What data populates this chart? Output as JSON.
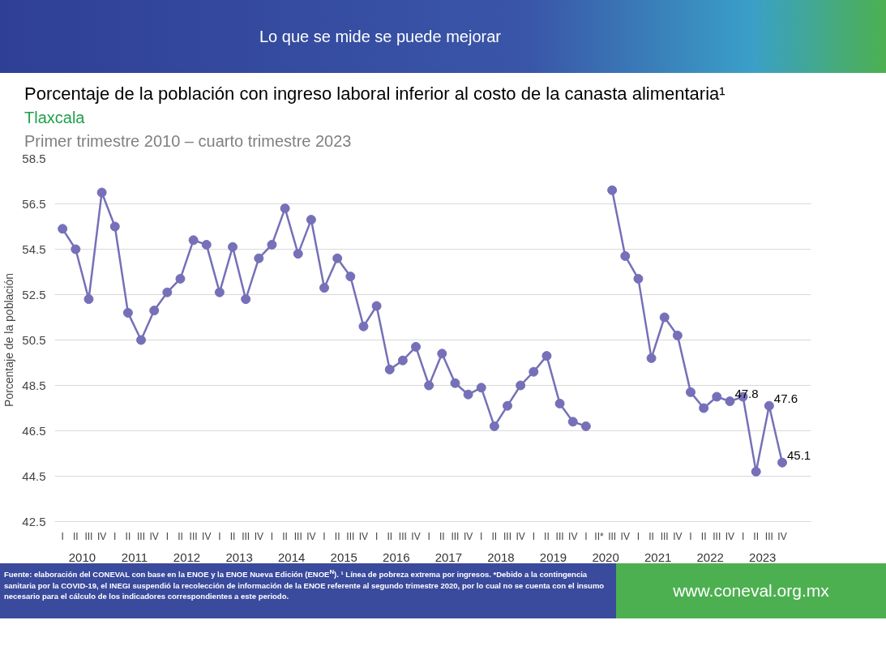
{
  "chart_data": {
    "type": "line",
    "title": "Porcentaje de la población con ingreso laboral inferior al costo de la canasta alimentaria¹",
    "subtitle": [
      "Tlaxcala",
      "Primer trimestre 2010 – cuarto trimestre 2023"
    ],
    "ylabel": "Porcentaje de la población",
    "categories": [
      "I",
      "II",
      "III",
      "IV",
      "I",
      "II",
      "III",
      "IV",
      "I",
      "II",
      "III",
      "IV",
      "I",
      "II",
      "III",
      "IV",
      "I",
      "II",
      "III",
      "IV",
      "I",
      "II",
      "III",
      "IV",
      "I",
      "II",
      "III",
      "IV",
      "I",
      "II",
      "III",
      "IV",
      "I",
      "II",
      "III",
      "IV",
      "I",
      "II",
      "III",
      "IV",
      "I",
      "II*",
      "III",
      "IV",
      "I",
      "II",
      "III",
      "IV",
      "I",
      "II",
      "III",
      "IV",
      "I",
      "II",
      "III",
      "IV"
    ],
    "series": [
      {
        "color": "#7570b8",
        "values": [
          55.4,
          54.5,
          52.3,
          57.0,
          55.5,
          51.7,
          50.5,
          51.8,
          52.6,
          53.2,
          54.9,
          54.7,
          52.6,
          54.6,
          52.3,
          54.1,
          54.7,
          56.3,
          54.3,
          55.8,
          52.8,
          54.1,
          53.3,
          51.1,
          52.0,
          49.2,
          49.6,
          50.2,
          48.5,
          49.9,
          48.6,
          48.1,
          48.4,
          46.7,
          47.6,
          48.5,
          49.1,
          49.8,
          47.7,
          46.9,
          46.7,
          null,
          57.1,
          54.2,
          53.2,
          49.7,
          51.5,
          50.7,
          48.2,
          47.5,
          48.0,
          47.8,
          48.0,
          44.7,
          47.6,
          45.1
        ],
        "value_labels": [
          null,
          null,
          null,
          null,
          null,
          null,
          null,
          null,
          null,
          null,
          null,
          null,
          null,
          null,
          null,
          null,
          null,
          null,
          null,
          null,
          null,
          null,
          null,
          null,
          null,
          null,
          null,
          null,
          null,
          null,
          null,
          null,
          null,
          null,
          null,
          null,
          null,
          null,
          null,
          null,
          null,
          null,
          null,
          null,
          null,
          null,
          null,
          null,
          null,
          null,
          null,
          "47.8",
          null,
          null,
          "47.6",
          "45.1"
        ]
      }
    ],
    "ylim": [
      42.5,
      58.5
    ],
    "yticks": [
      42.5,
      44.5,
      46.5,
      48.5,
      50.5,
      52.5,
      54.5,
      56.5,
      58.5
    ],
    "grid": "y",
    "marker": "circle",
    "line_style": "solid",
    "annotations": [
      "Lo que se mide se puede mejorar",
      "Fuente: elaboración del CONEVAL con base en la ENOE y la ENOE Nueva Edición (ENOE$^{N}$). ¹ Línea de pobreza extrema por ingresos. *Debido a la contingencia sanitaria por la COVID-19, el INEGI suspendió la recolección de información de la ENOE referente al segundo trimestre 2020, por lo cual no se cuenta con el insumo necesario para el cálculo de los indicadores correspondientes a este periodo.",
      "www.coneval.org.mx",
      "2010",
      "2011",
      "2012",
      "2013",
      "2014",
      "2015",
      "2016",
      "2017",
      "2018",
      "2019",
      "2020",
      "2021",
      "2022",
      "2023"
    ]
  }
}
